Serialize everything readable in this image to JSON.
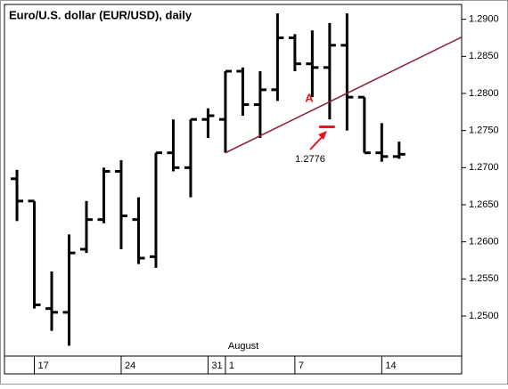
{
  "chart_data": {
    "type": "ohlc",
    "title": "Euro/U.S. dollar (EUR/USD), daily",
    "x_group_label": "August",
    "categories": [
      null,
      "17",
      null,
      null,
      null,
      null,
      "24",
      null,
      null,
      null,
      null,
      "31",
      "1",
      null,
      null,
      null,
      "7",
      null,
      null,
      null,
      null,
      "14",
      null
    ],
    "series": [
      {
        "color": "#000000",
        "open": [
          1.2685,
          1.2655,
          1.251,
          1.2505,
          1.259,
          1.263,
          1.2695,
          1.263,
          1.258,
          1.272,
          1.27,
          1.2765,
          1.2765,
          1.283,
          1.2785,
          1.2805,
          1.2875,
          1.284,
          1.2835,
          1.2865,
          1.2795,
          1.272,
          1.2715
        ],
        "high": [
          1.2697,
          1.2655,
          1.256,
          1.261,
          1.2655,
          1.27,
          1.271,
          1.266,
          1.272,
          1.2765,
          1.2765,
          1.278,
          1.283,
          1.2835,
          1.283,
          1.2908,
          1.288,
          1.2885,
          1.2895,
          1.2908,
          1.2795,
          1.276,
          1.2735
        ],
        "low": [
          1.2628,
          1.251,
          1.248,
          1.246,
          1.2585,
          1.2625,
          1.259,
          1.257,
          1.2565,
          1.2695,
          1.266,
          1.274,
          1.272,
          1.277,
          1.274,
          1.279,
          1.283,
          1.2795,
          1.2765,
          1.275,
          1.272,
          1.2708,
          1.2712
        ],
        "close": [
          1.2655,
          1.2515,
          1.2505,
          1.2585,
          1.263,
          1.2695,
          1.2635,
          1.2578,
          1.272,
          1.27,
          1.2765,
          1.277,
          1.283,
          1.2785,
          1.2805,
          1.2875,
          1.284,
          1.2835,
          1.2865,
          1.2795,
          1.272,
          1.2715,
          1.2718
        ]
      }
    ],
    "trendline": {
      "color": "#8b2232",
      "x": [
        12,
        25.6
      ],
      "y": [
        1.272,
        1.2876
      ]
    },
    "annotations": [
      {
        "text": "A",
        "color": "#e8141e"
      },
      {
        "text": "1.2776",
        "color": "#000000"
      }
    ],
    "marker": {
      "color": "#e8141e",
      "x": [
        17.4,
        18.3
      ],
      "y": [
        1.2755,
        1.2755
      ]
    },
    "xlim": [
      -0.72,
      25.6
    ],
    "ylim": [
      1.2446,
      1.292
    ],
    "yticks": [
      {
        "value": 1.25,
        "label": "1.2500"
      },
      {
        "value": 1.255,
        "label": "1.2550"
      },
      {
        "value": 1.26,
        "label": "1.2600"
      },
      {
        "value": 1.265,
        "label": "1.2650"
      },
      {
        "value": 1.27,
        "label": "1.2700"
      },
      {
        "value": 1.275,
        "label": "1.2750"
      },
      {
        "value": 1.28,
        "label": "1.2800"
      },
      {
        "value": 1.285,
        "label": "1.2850"
      },
      {
        "value": 1.29,
        "label": "1.2900"
      }
    ]
  }
}
